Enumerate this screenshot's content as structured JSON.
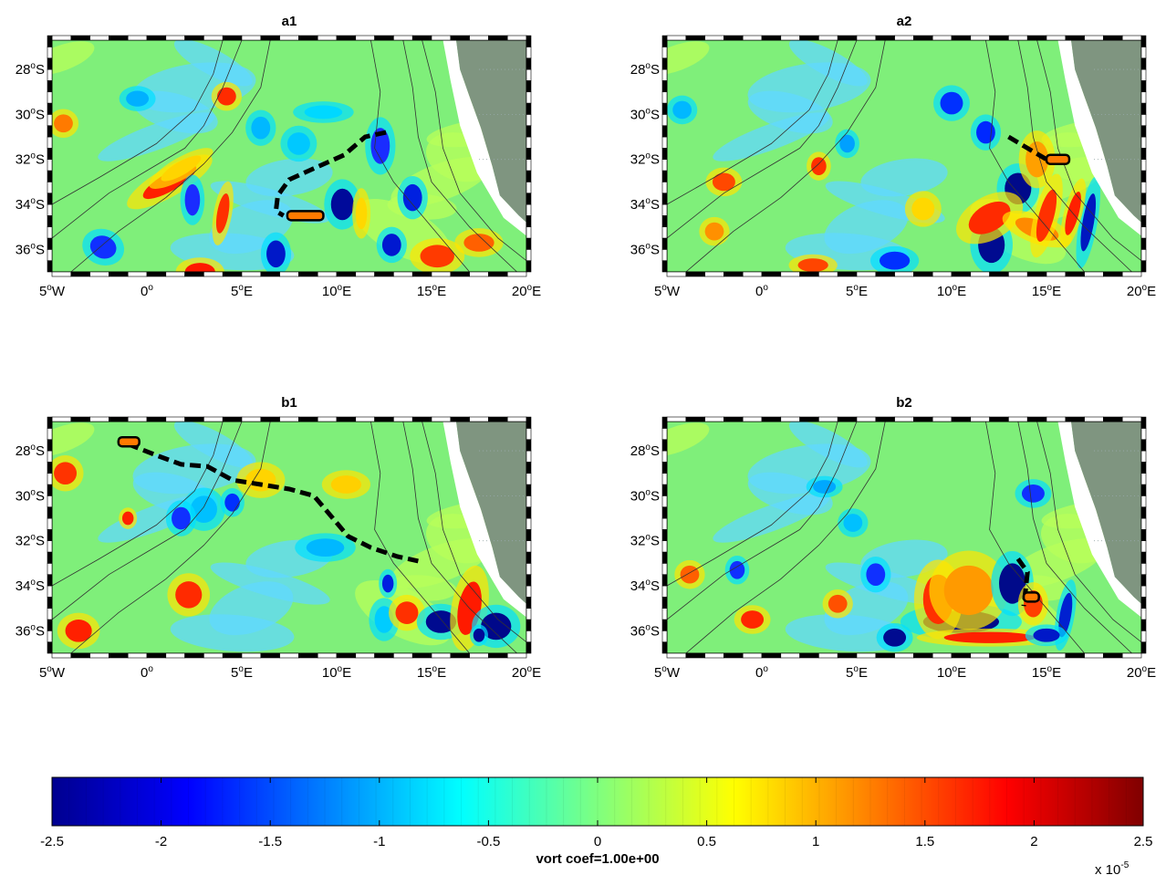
{
  "panels": [
    {
      "id": "a1",
      "title": "a1"
    },
    {
      "id": "a2",
      "title": "a2"
    },
    {
      "id": "b1",
      "title": "b1"
    },
    {
      "id": "b2",
      "title": "b2"
    }
  ],
  "map": {
    "lat_ticks": [
      {
        "value": -28,
        "deg": "28",
        "hemi": "S"
      },
      {
        "value": -30,
        "deg": "30",
        "hemi": "S"
      },
      {
        "value": -32,
        "deg": "32",
        "hemi": "S"
      },
      {
        "value": -34,
        "deg": "34",
        "hemi": "S"
      },
      {
        "value": -36,
        "deg": "36",
        "hemi": "S"
      }
    ],
    "lon_ticks": [
      {
        "value": -5,
        "deg": "5",
        "hemi": "W"
      },
      {
        "value": 0,
        "deg": "0",
        "hemi": ""
      },
      {
        "value": 5,
        "deg": "5",
        "hemi": "E"
      },
      {
        "value": 10,
        "deg": "10",
        "hemi": "E"
      },
      {
        "value": 15,
        "deg": "15",
        "hemi": "E"
      },
      {
        "value": 20,
        "deg": "20",
        "hemi": "E"
      }
    ],
    "lon_range": [
      -5,
      20
    ],
    "lat_range": [
      -37,
      -26.7
    ],
    "colors": {
      "land": "#7f9580",
      "ocean_base": "#7fef7a",
      "track": "#000000"
    }
  },
  "colorbar": {
    "ticks": [
      "-2.5",
      "-2",
      "-1.5",
      "-1",
      "-0.5",
      "0",
      "0.5",
      "1",
      "1.5",
      "2",
      "2.5"
    ],
    "label": "vort coef=1.00e+00",
    "scale_base": "x 10",
    "scale_exp": "-5",
    "range": [
      -2.5,
      2.5
    ]
  }
}
